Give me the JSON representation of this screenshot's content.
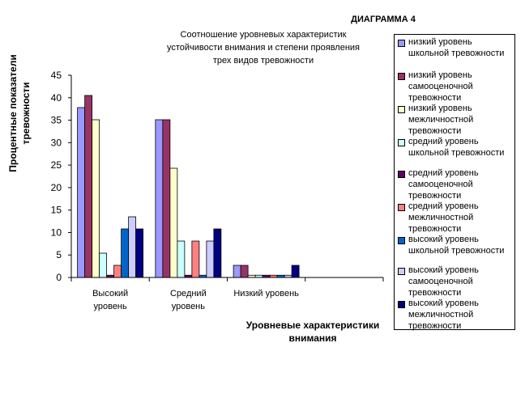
{
  "chart_data": {
    "type": "bar",
    "corner_title": "ДИАГРАММА 4",
    "title": "Соотношение уровневых характеристик\nустойчивости внимания и степени проявления\nтрех видов тревожности",
    "xlabel": "Уровневые характеристики\nвнимания",
    "ylabel": "Процентные показатели\nтревожности",
    "ylim": [
      0,
      45
    ],
    "yticks": [
      0,
      5,
      10,
      15,
      20,
      25,
      30,
      35,
      40,
      45
    ],
    "categories": [
      "Высокий\nуровень",
      "Средний\nуровень",
      "Низкий уровень",
      ""
    ],
    "grid": false,
    "legend_position": "right",
    "series": [
      {
        "name": "низкий уровень\nшкольной тревожности",
        "color": "#9999FF",
        "values": [
          37.8,
          35.1,
          2.7,
          0
        ]
      },
      {
        "name": "низкий уровень\nсамооценочной\nтревожности",
        "color": "#993366",
        "values": [
          40.5,
          35.1,
          2.7,
          0
        ]
      },
      {
        "name": "низкий уровень\nмежличностной\nтревожности",
        "color": "#FFFFCC",
        "values": [
          35.1,
          24.3,
          0.5,
          0
        ]
      },
      {
        "name": "средний уровень\nшкольной тревожности",
        "color": "#CCFFFF",
        "values": [
          5.4,
          8.1,
          0.5,
          0
        ]
      },
      {
        "name": "средний уровень\nсамооценочной\nтревожности",
        "color": "#660066",
        "values": [
          0.5,
          0.5,
          0.5,
          0
        ]
      },
      {
        "name": "средний уровень\nмежличностной\nтревожности",
        "color": "#FF8080",
        "values": [
          2.7,
          8.1,
          0.5,
          0
        ]
      },
      {
        "name": "высокий уровень\nшкольной тревожности",
        "color": "#0066CC",
        "values": [
          10.8,
          0.5,
          0.5,
          0
        ]
      },
      {
        "name": "высокий уровень\nсамооценочной\nтревожности",
        "color": "#CCCCFF",
        "values": [
          13.5,
          8.1,
          0.5,
          0
        ]
      },
      {
        "name": "высокий уровень\nмежличностной\nтревожности",
        "color": "#000080",
        "values": [
          10.8,
          10.8,
          2.7,
          0
        ]
      }
    ]
  }
}
